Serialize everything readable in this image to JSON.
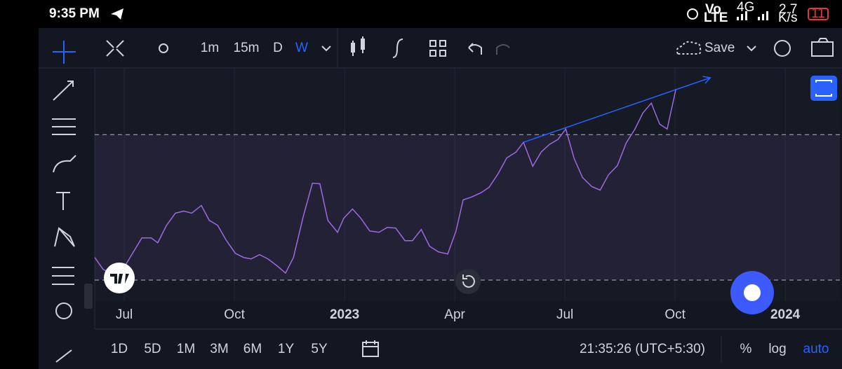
{
  "status_bar": {
    "time": "9:35 PM",
    "volte": [
      "Vo",
      "LTE"
    ],
    "network": "4G",
    "speed": [
      "2.7",
      "K/s"
    ],
    "battery": "11"
  },
  "toolbar": {
    "intervals": [
      "1m",
      "15m",
      "D",
      "W"
    ],
    "active_interval": 3,
    "save": "Save"
  },
  "chart_data": {
    "type": "line",
    "color": "#9c6ade",
    "x": [
      2022.433,
      2022.452,
      2022.473,
      2022.497,
      2022.516,
      2022.54,
      2022.561,
      2022.576,
      2022.596,
      2022.616,
      2022.635,
      2022.653,
      2022.675,
      2022.693,
      2022.712,
      2022.731,
      2022.752,
      2022.771,
      2022.788,
      2022.807,
      2022.826,
      2022.847,
      2022.866,
      2022.884,
      2022.906,
      2022.927,
      2022.944,
      2022.962,
      2022.984,
      2022.998,
      2023.018,
      2023.037,
      2023.057,
      2023.078,
      2023.097,
      2023.116,
      2023.137,
      2023.154,
      2023.174,
      2023.193,
      2023.213,
      2023.234,
      2023.253,
      2023.269,
      2023.288,
      2023.309,
      2023.328,
      2023.349,
      2023.368,
      2023.389,
      2023.406,
      2023.427,
      2023.446,
      2023.465,
      2023.484,
      2023.502,
      2023.521,
      2023.54,
      2023.561,
      2023.58,
      2023.599,
      2023.619,
      2023.639,
      2023.659,
      2023.677,
      2023.696,
      2023.715,
      2023.732,
      2023.752
    ],
    "values": [
      18.7,
      13.6,
      11.4,
      13.6,
      19.6,
      27.1,
      27.1,
      25.0,
      32.5,
      37.7,
      38.6,
      37.7,
      41.0,
      34.6,
      32.5,
      26.2,
      20.5,
      18.7,
      18.1,
      19.9,
      18.1,
      15.1,
      12.0,
      18.7,
      36.1,
      50.6,
      50.3,
      34.6,
      29.5,
      35.5,
      39.5,
      35.5,
      30.1,
      29.5,
      31.6,
      31.3,
      25.9,
      25.9,
      30.7,
      23.5,
      21.1,
      20.2,
      30.1,
      43.4,
      44.6,
      46.4,
      48.8,
      54.8,
      61.4,
      63.9,
      68.1,
      57.8,
      63.9,
      67.2,
      69.3,
      73.8,
      61.1,
      53.0,
      49.1,
      47.6,
      54.2,
      58.1,
      67.8,
      73.8,
      80.7,
      84.9,
      75.9,
      73.8,
      91.0
    ],
    "trend_line": {
      "x": [
        2023.406,
        2023.83
      ],
      "values": [
        68.1,
        95.8
      ],
      "color": "#2962ff"
    },
    "levels": [
      71.4,
      9.0
    ],
    "xlim": [
      2022.433,
      2024.124
    ],
    "ylim": [
      0,
      100
    ],
    "xticks": [
      {
        "value": 2022.5,
        "label": "Jul"
      },
      {
        "value": 2022.75,
        "label": "Oct"
      },
      2023,
      {
        "value": 2023.25,
        "label": "Apr"
      },
      {
        "value": 2023.5,
        "label": "Jul"
      },
      {
        "value": 2023.75,
        "label": "Oct"
      },
      2024
    ],
    "grid": true
  },
  "footer": {
    "ranges": [
      "1D",
      "5D",
      "1M",
      "3M",
      "6M",
      "1Y",
      "5Y"
    ],
    "clock": "21:35:26 (UTC+5:30)",
    "scale_options": [
      "%",
      "log",
      "auto"
    ]
  }
}
